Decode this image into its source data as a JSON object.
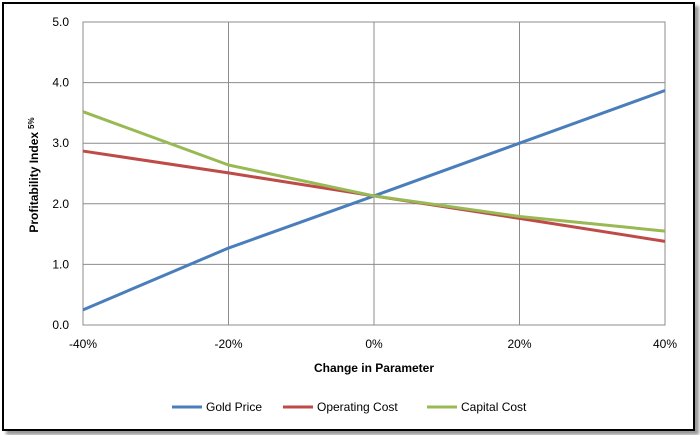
{
  "chart_data": {
    "type": "line",
    "x": [
      -40,
      -20,
      0,
      20,
      40
    ],
    "x_tick_labels": [
      "-40%",
      "-20%",
      "0%",
      "20%",
      "40%"
    ],
    "y_tick_labels": [
      "0.0",
      "1.0",
      "2.0",
      "3.0",
      "4.0",
      "5.0"
    ],
    "xlim": [
      -40,
      40
    ],
    "ylim": [
      0,
      5
    ],
    "xlabel": "Change in Parameter",
    "ylabel": "Profitability Index",
    "ylabel_sub": "5%",
    "grid": true,
    "legend_position": "bottom",
    "series": [
      {
        "name": "Gold Price",
        "color": "#4a7ebb",
        "values": [
          0.25,
          1.27,
          2.13,
          3.0,
          3.87
        ]
      },
      {
        "name": "Operating Cost",
        "color": "#be4b48",
        "values": [
          2.87,
          2.51,
          2.13,
          1.76,
          1.38
        ]
      },
      {
        "name": "Capital Cost",
        "color": "#98b954",
        "values": [
          3.52,
          2.64,
          2.13,
          1.79,
          1.55
        ]
      }
    ]
  }
}
